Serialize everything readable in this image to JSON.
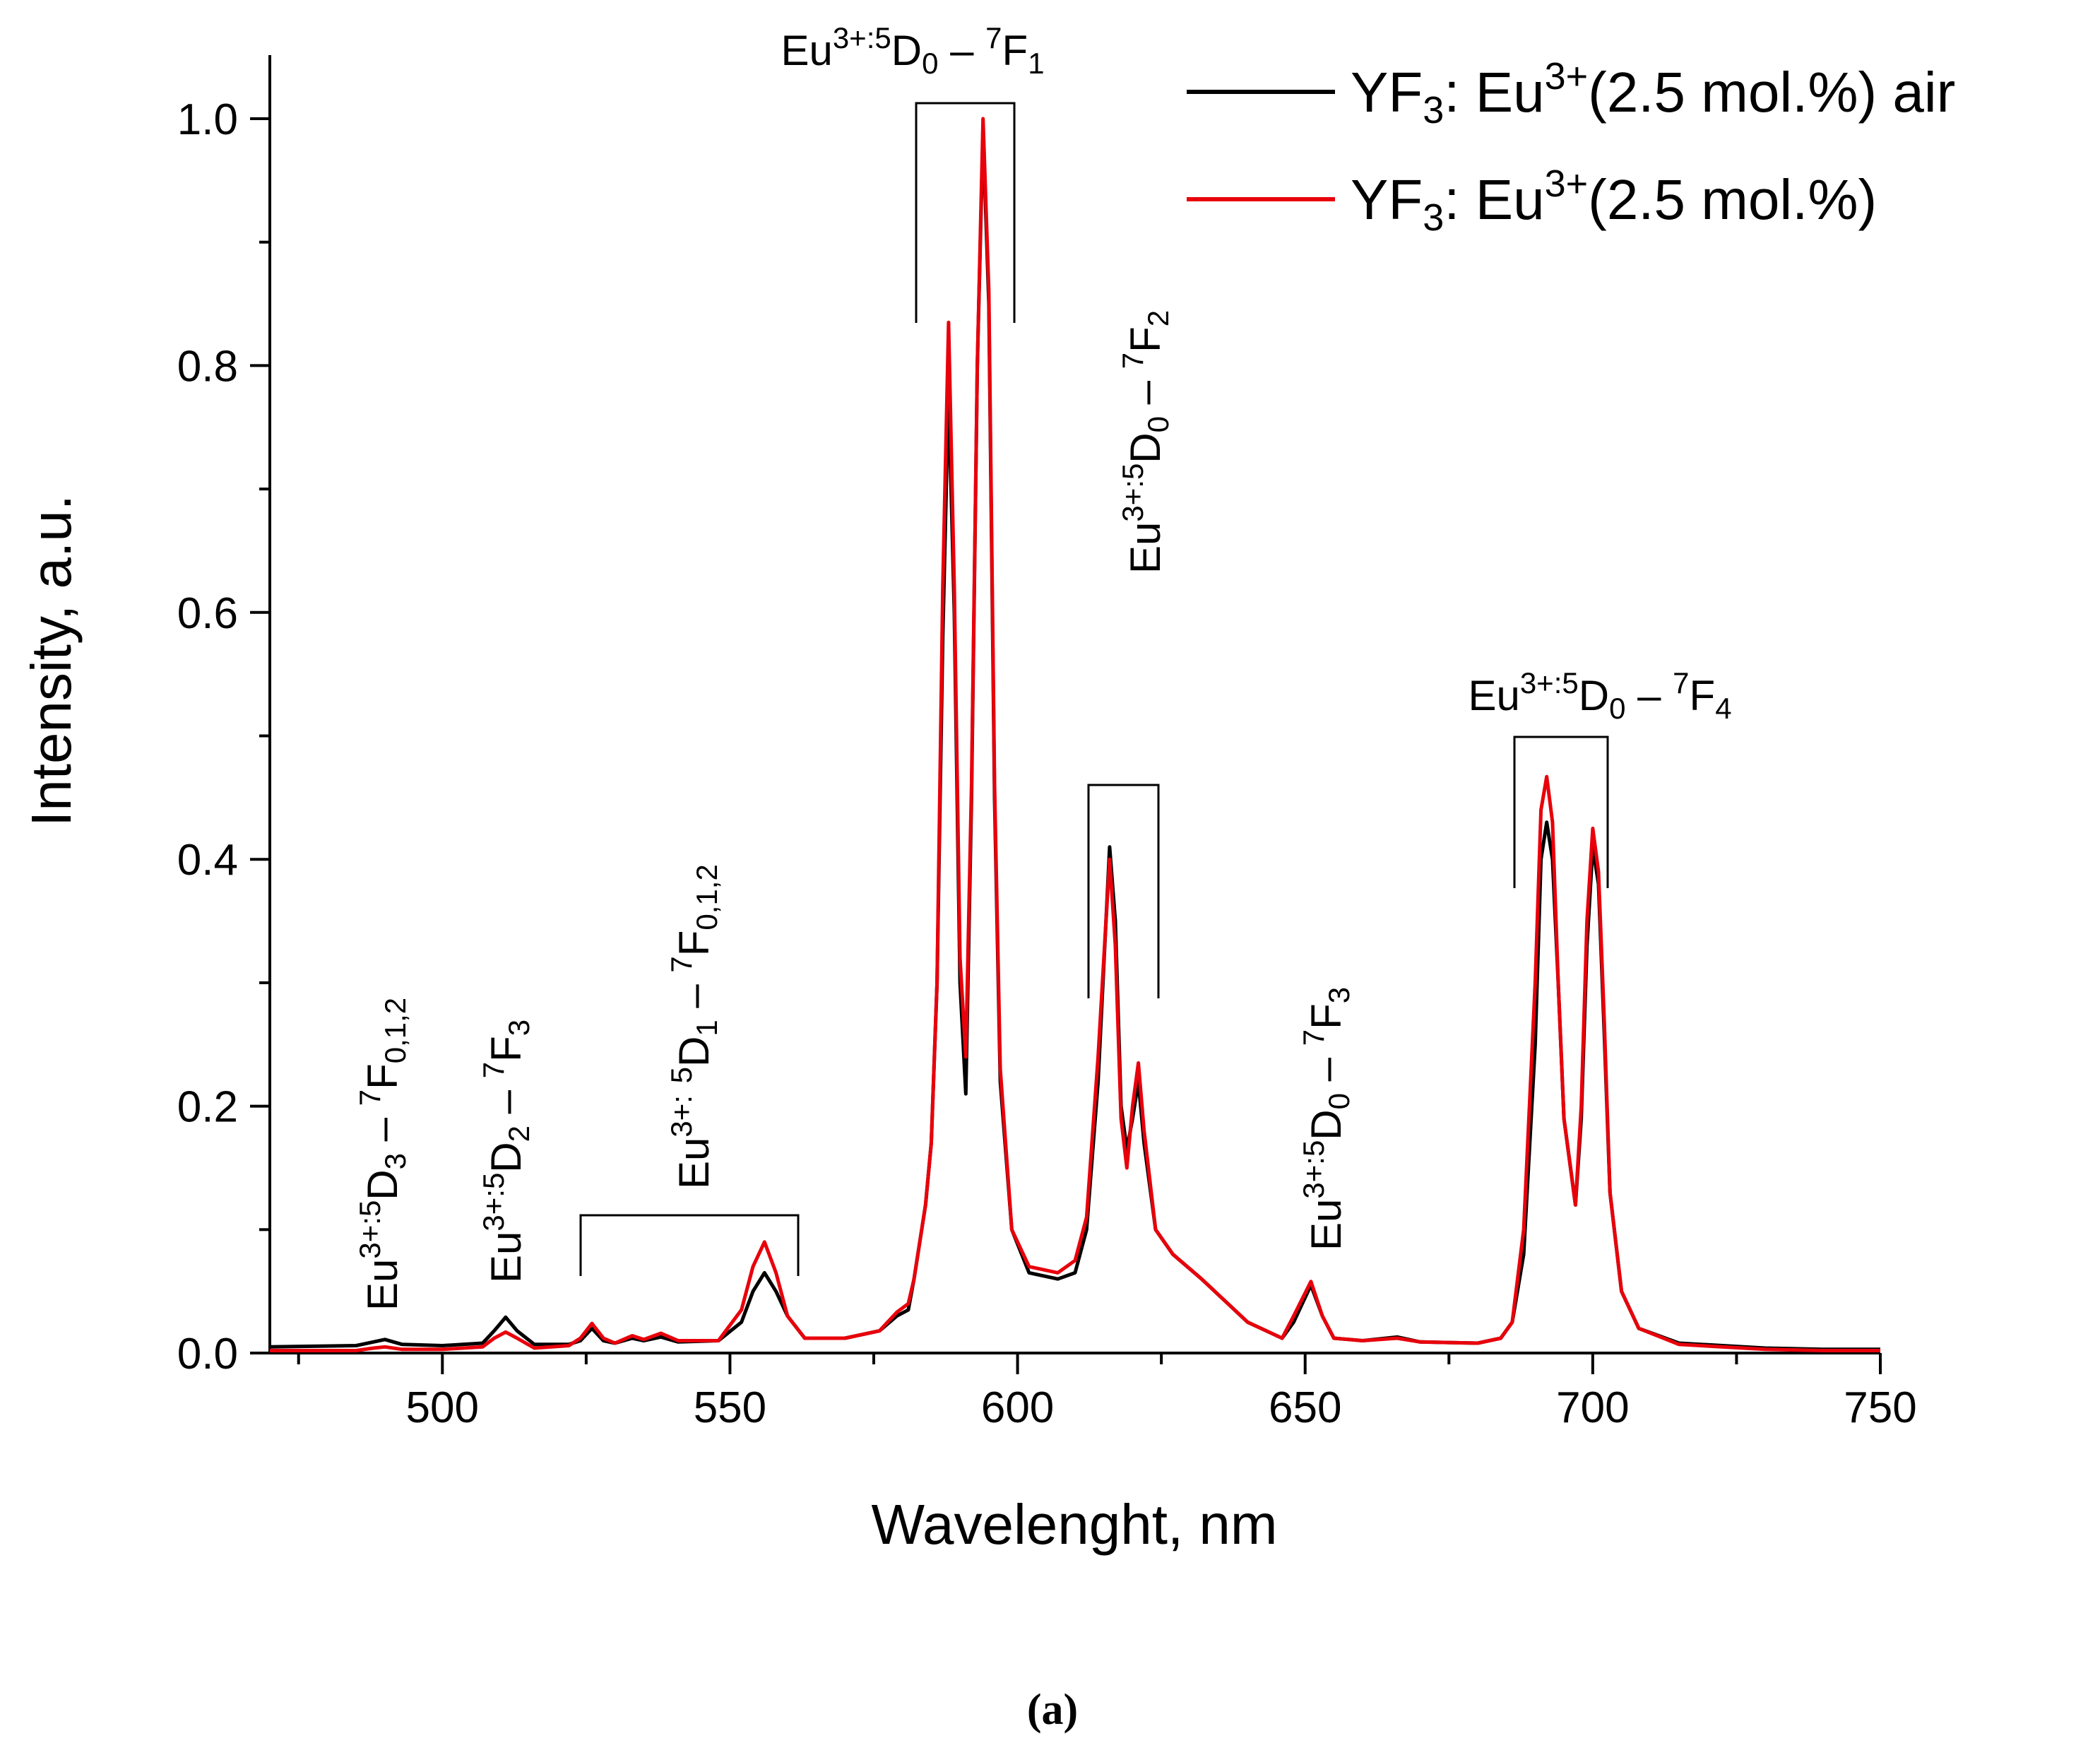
{
  "chart_data": {
    "type": "line",
    "title": "",
    "xlabel": "Wavelenght, nm",
    "ylabel": "Intensity, a.u.",
    "xlim": [
      470,
      750
    ],
    "ylim": [
      0,
      1.05
    ],
    "x_ticks": [
      500,
      550,
      600,
      650,
      700,
      750
    ],
    "y_ticks": [
      0.0,
      0.2,
      0.4,
      0.6,
      0.8,
      1.0
    ],
    "x_tick_labels": [
      "500",
      "550",
      "600",
      "650",
      "700",
      "750"
    ],
    "y_tick_labels": [
      "0.0",
      "0.2",
      "0.4",
      "0.6",
      "0.8",
      "1.0"
    ],
    "legend_position": "top-right",
    "series": [
      {
        "name_main": "YF",
        "name_sub": "3",
        "name_mid": ": Eu",
        "name_sup": "3+",
        "name_tail": "(2.5 mol.%) air",
        "color": "#000000",
        "points": [
          [
            470,
            0.005
          ],
          [
            485,
            0.006
          ],
          [
            488,
            0.009
          ],
          [
            490,
            0.011
          ],
          [
            493,
            0.007
          ],
          [
            500,
            0.006
          ],
          [
            507,
            0.008
          ],
          [
            509,
            0.018
          ],
          [
            511,
            0.029
          ],
          [
            513,
            0.018
          ],
          [
            516,
            0.007
          ],
          [
            522,
            0.007
          ],
          [
            524,
            0.01
          ],
          [
            526,
            0.02
          ],
          [
            528,
            0.01
          ],
          [
            530,
            0.008
          ],
          [
            533,
            0.012
          ],
          [
            535,
            0.01
          ],
          [
            538,
            0.013
          ],
          [
            541,
            0.009
          ],
          [
            548,
            0.01
          ],
          [
            552,
            0.025
          ],
          [
            554,
            0.05
          ],
          [
            556,
            0.065
          ],
          [
            558,
            0.05
          ],
          [
            560,
            0.03
          ],
          [
            563,
            0.012
          ],
          [
            570,
            0.012
          ],
          [
            576,
            0.018
          ],
          [
            579,
            0.03
          ],
          [
            581,
            0.035
          ],
          [
            582,
            0.06
          ],
          [
            584,
            0.12
          ],
          [
            585,
            0.17
          ],
          [
            586,
            0.3
          ],
          [
            587,
            0.58
          ],
          [
            588,
            0.78
          ],
          [
            589,
            0.6
          ],
          [
            590,
            0.3
          ],
          [
            591,
            0.21
          ],
          [
            592,
            0.45
          ],
          [
            593,
            0.8
          ],
          [
            594,
            0.99
          ],
          [
            595,
            0.85
          ],
          [
            596,
            0.45
          ],
          [
            597,
            0.22
          ],
          [
            599,
            0.1
          ],
          [
            602,
            0.065
          ],
          [
            607,
            0.06
          ],
          [
            610,
            0.065
          ],
          [
            612,
            0.1
          ],
          [
            614,
            0.22
          ],
          [
            616,
            0.41
          ],
          [
            617,
            0.35
          ],
          [
            618,
            0.2
          ],
          [
            619,
            0.165
          ],
          [
            620,
            0.19
          ],
          [
            621,
            0.22
          ],
          [
            622,
            0.17
          ],
          [
            624,
            0.1
          ],
          [
            627,
            0.08
          ],
          [
            632,
            0.06
          ],
          [
            640,
            0.025
          ],
          [
            646,
            0.012
          ],
          [
            648,
            0.025
          ],
          [
            651,
            0.055
          ],
          [
            653,
            0.03
          ],
          [
            655,
            0.012
          ],
          [
            660,
            0.01
          ],
          [
            666,
            0.013
          ],
          [
            670,
            0.009
          ],
          [
            680,
            0.008
          ],
          [
            684,
            0.012
          ],
          [
            686,
            0.025
          ],
          [
            688,
            0.08
          ],
          [
            690,
            0.25
          ],
          [
            691,
            0.4
          ],
          [
            692,
            0.43
          ],
          [
            693,
            0.4
          ],
          [
            694,
            0.3
          ],
          [
            695,
            0.19
          ],
          [
            697,
            0.12
          ],
          [
            698,
            0.19
          ],
          [
            699,
            0.33
          ],
          [
            700,
            0.41
          ],
          [
            701,
            0.38
          ],
          [
            702,
            0.26
          ],
          [
            703,
            0.13
          ],
          [
            705,
            0.05
          ],
          [
            708,
            0.02
          ],
          [
            715,
            0.008
          ],
          [
            730,
            0.004
          ],
          [
            740,
            0.003
          ],
          [
            750,
            0.003
          ]
        ]
      },
      {
        "name_main": "YF",
        "name_sub": "3",
        "name_mid": ": Eu",
        "name_sup": "3+",
        "name_tail": "(2.5 mol.%)",
        "color": "#e8000b",
        "points": [
          [
            470,
            0.002
          ],
          [
            485,
            0.002
          ],
          [
            488,
            0.004
          ],
          [
            490,
            0.005
          ],
          [
            493,
            0.003
          ],
          [
            500,
            0.003
          ],
          [
            507,
            0.005
          ],
          [
            509,
            0.012
          ],
          [
            511,
            0.017
          ],
          [
            513,
            0.012
          ],
          [
            516,
            0.004
          ],
          [
            522,
            0.006
          ],
          [
            524,
            0.012
          ],
          [
            526,
            0.024
          ],
          [
            528,
            0.012
          ],
          [
            530,
            0.008
          ],
          [
            533,
            0.014
          ],
          [
            535,
            0.011
          ],
          [
            538,
            0.016
          ],
          [
            541,
            0.01
          ],
          [
            548,
            0.01
          ],
          [
            552,
            0.035
          ],
          [
            554,
            0.07
          ],
          [
            556,
            0.09
          ],
          [
            558,
            0.065
          ],
          [
            560,
            0.03
          ],
          [
            563,
            0.012
          ],
          [
            570,
            0.012
          ],
          [
            576,
            0.018
          ],
          [
            579,
            0.033
          ],
          [
            581,
            0.04
          ],
          [
            582,
            0.06
          ],
          [
            584,
            0.12
          ],
          [
            585,
            0.17
          ],
          [
            586,
            0.3
          ],
          [
            587,
            0.62
          ],
          [
            588,
            0.835
          ],
          [
            589,
            0.62
          ],
          [
            590,
            0.32
          ],
          [
            591,
            0.24
          ],
          [
            592,
            0.46
          ],
          [
            593,
            0.8
          ],
          [
            594,
            1.0
          ],
          [
            595,
            0.86
          ],
          [
            596,
            0.46
          ],
          [
            597,
            0.23
          ],
          [
            599,
            0.1
          ],
          [
            602,
            0.07
          ],
          [
            607,
            0.065
          ],
          [
            610,
            0.075
          ],
          [
            612,
            0.11
          ],
          [
            614,
            0.24
          ],
          [
            616,
            0.4
          ],
          [
            617,
            0.33
          ],
          [
            618,
            0.19
          ],
          [
            619,
            0.15
          ],
          [
            620,
            0.2
          ],
          [
            621,
            0.235
          ],
          [
            622,
            0.18
          ],
          [
            624,
            0.1
          ],
          [
            627,
            0.08
          ],
          [
            632,
            0.06
          ],
          [
            640,
            0.025
          ],
          [
            646,
            0.012
          ],
          [
            648,
            0.03
          ],
          [
            651,
            0.058
          ],
          [
            653,
            0.03
          ],
          [
            655,
            0.012
          ],
          [
            660,
            0.01
          ],
          [
            666,
            0.012
          ],
          [
            670,
            0.009
          ],
          [
            680,
            0.008
          ],
          [
            684,
            0.012
          ],
          [
            686,
            0.025
          ],
          [
            688,
            0.1
          ],
          [
            690,
            0.3
          ],
          [
            691,
            0.44
          ],
          [
            692,
            0.467
          ],
          [
            693,
            0.43
          ],
          [
            694,
            0.3
          ],
          [
            695,
            0.19
          ],
          [
            697,
            0.12
          ],
          [
            698,
            0.2
          ],
          [
            699,
            0.35
          ],
          [
            700,
            0.425
          ],
          [
            701,
            0.39
          ],
          [
            702,
            0.27
          ],
          [
            703,
            0.13
          ],
          [
            705,
            0.05
          ],
          [
            708,
            0.02
          ],
          [
            715,
            0.007
          ],
          [
            730,
            0.003
          ],
          [
            740,
            0.002
          ],
          [
            750,
            0.002
          ]
        ]
      }
    ],
    "annotations": [
      {
        "id": "f1",
        "parts": [
          [
            "Eu",
            ""
          ],
          [
            "3+:5",
            "sup"
          ],
          [
            "D",
            ""
          ],
          [
            "0",
            "sub"
          ],
          [
            " – ",
            ""
          ],
          [
            "7",
            "sup"
          ],
          [
            "F",
            ""
          ],
          [
            "1",
            "sub"
          ]
        ]
      },
      {
        "id": "f2",
        "parts": [
          [
            "Eu",
            ""
          ],
          [
            "3+:5",
            "sup"
          ],
          [
            "D",
            ""
          ],
          [
            "0",
            "sub"
          ],
          [
            " – ",
            ""
          ],
          [
            "7",
            "sup"
          ],
          [
            "F",
            ""
          ],
          [
            "2",
            "sub"
          ]
        ]
      },
      {
        "id": "f3",
        "parts": [
          [
            "Eu",
            ""
          ],
          [
            "3+:5",
            "sup"
          ],
          [
            "D",
            ""
          ],
          [
            "0",
            "sub"
          ],
          [
            " – ",
            ""
          ],
          [
            "7",
            "sup"
          ],
          [
            "F",
            ""
          ],
          [
            "3",
            "sub"
          ]
        ]
      },
      {
        "id": "f4",
        "parts": [
          [
            "Eu",
            ""
          ],
          [
            "3+:5",
            "sup"
          ],
          [
            "D",
            ""
          ],
          [
            "0",
            "sub"
          ],
          [
            " – ",
            ""
          ],
          [
            "7",
            "sup"
          ],
          [
            "F",
            ""
          ],
          [
            "4",
            "sub"
          ]
        ]
      },
      {
        "id": "d1",
        "parts": [
          [
            "Eu",
            ""
          ],
          [
            "3+:",
            "sup"
          ],
          [
            " ",
            ""
          ],
          [
            "5",
            "sup"
          ],
          [
            "D",
            ""
          ],
          [
            "1",
            "sub"
          ],
          [
            " – ",
            ""
          ],
          [
            "7",
            "sup"
          ],
          [
            "F",
            ""
          ],
          [
            "0,1,2",
            "sub"
          ]
        ]
      },
      {
        "id": "d2",
        "parts": [
          [
            "Eu",
            ""
          ],
          [
            "3+:5",
            "sup"
          ],
          [
            "D",
            ""
          ],
          [
            "2",
            "sub"
          ],
          [
            " – ",
            ""
          ],
          [
            "7",
            "sup"
          ],
          [
            "F",
            ""
          ],
          [
            "3",
            "sub"
          ]
        ]
      },
      {
        "id": "d3",
        "parts": [
          [
            "Eu",
            ""
          ],
          [
            "3+:5",
            "sup"
          ],
          [
            "D",
            ""
          ],
          [
            "3",
            "sub"
          ],
          [
            " – ",
            ""
          ],
          [
            "7",
            "sup"
          ],
          [
            "F",
            ""
          ],
          [
            "0,1,2",
            "sub"
          ]
        ]
      }
    ]
  },
  "caption": "(a)"
}
